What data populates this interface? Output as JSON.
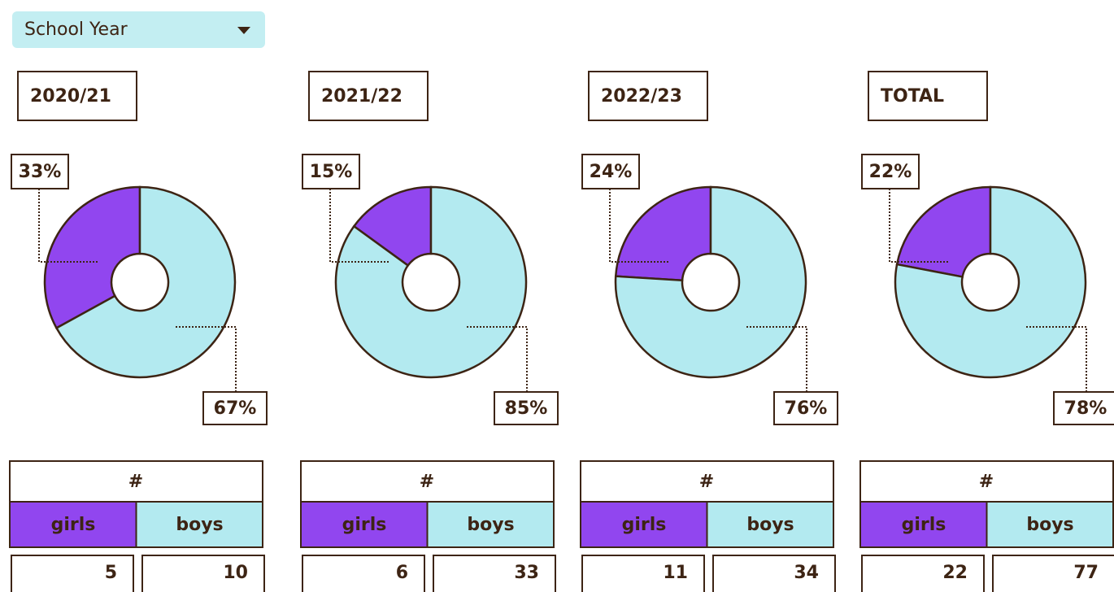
{
  "dropdown": {
    "label": "School Year"
  },
  "chart_data": [
    {
      "type": "pie",
      "title": "2020/21",
      "values": [
        33,
        67
      ],
      "value_labels": [
        "33%",
        "67%"
      ],
      "colors": [
        "#9146ef",
        "#b3eaf0"
      ]
    },
    {
      "type": "pie",
      "title": "2021/22",
      "values": [
        15,
        85
      ],
      "value_labels": [
        "15%",
        "85%"
      ],
      "colors": [
        "#9146ef",
        "#b3eaf0"
      ]
    },
    {
      "type": "pie",
      "title": "2022/23",
      "values": [
        24,
        76
      ],
      "value_labels": [
        "24%",
        "76%"
      ],
      "colors": [
        "#9146ef",
        "#b3eaf0"
      ]
    },
    {
      "type": "pie",
      "title": "TOTAL",
      "values": [
        22,
        78
      ],
      "value_labels": [
        "22%",
        "78%"
      ],
      "colors": [
        "#9146ef",
        "#b3eaf0"
      ]
    }
  ],
  "tables": [
    {
      "header": "#",
      "columns": [
        "girls",
        "boys"
      ],
      "values": [
        5,
        10
      ]
    },
    {
      "header": "#",
      "columns": [
        "girls",
        "boys"
      ],
      "values": [
        6,
        33
      ]
    },
    {
      "header": "#",
      "columns": [
        "girls",
        "boys"
      ],
      "values": [
        11,
        34
      ]
    },
    {
      "header": "#",
      "columns": [
        "girls",
        "boys"
      ],
      "values": [
        22,
        77
      ]
    }
  ]
}
